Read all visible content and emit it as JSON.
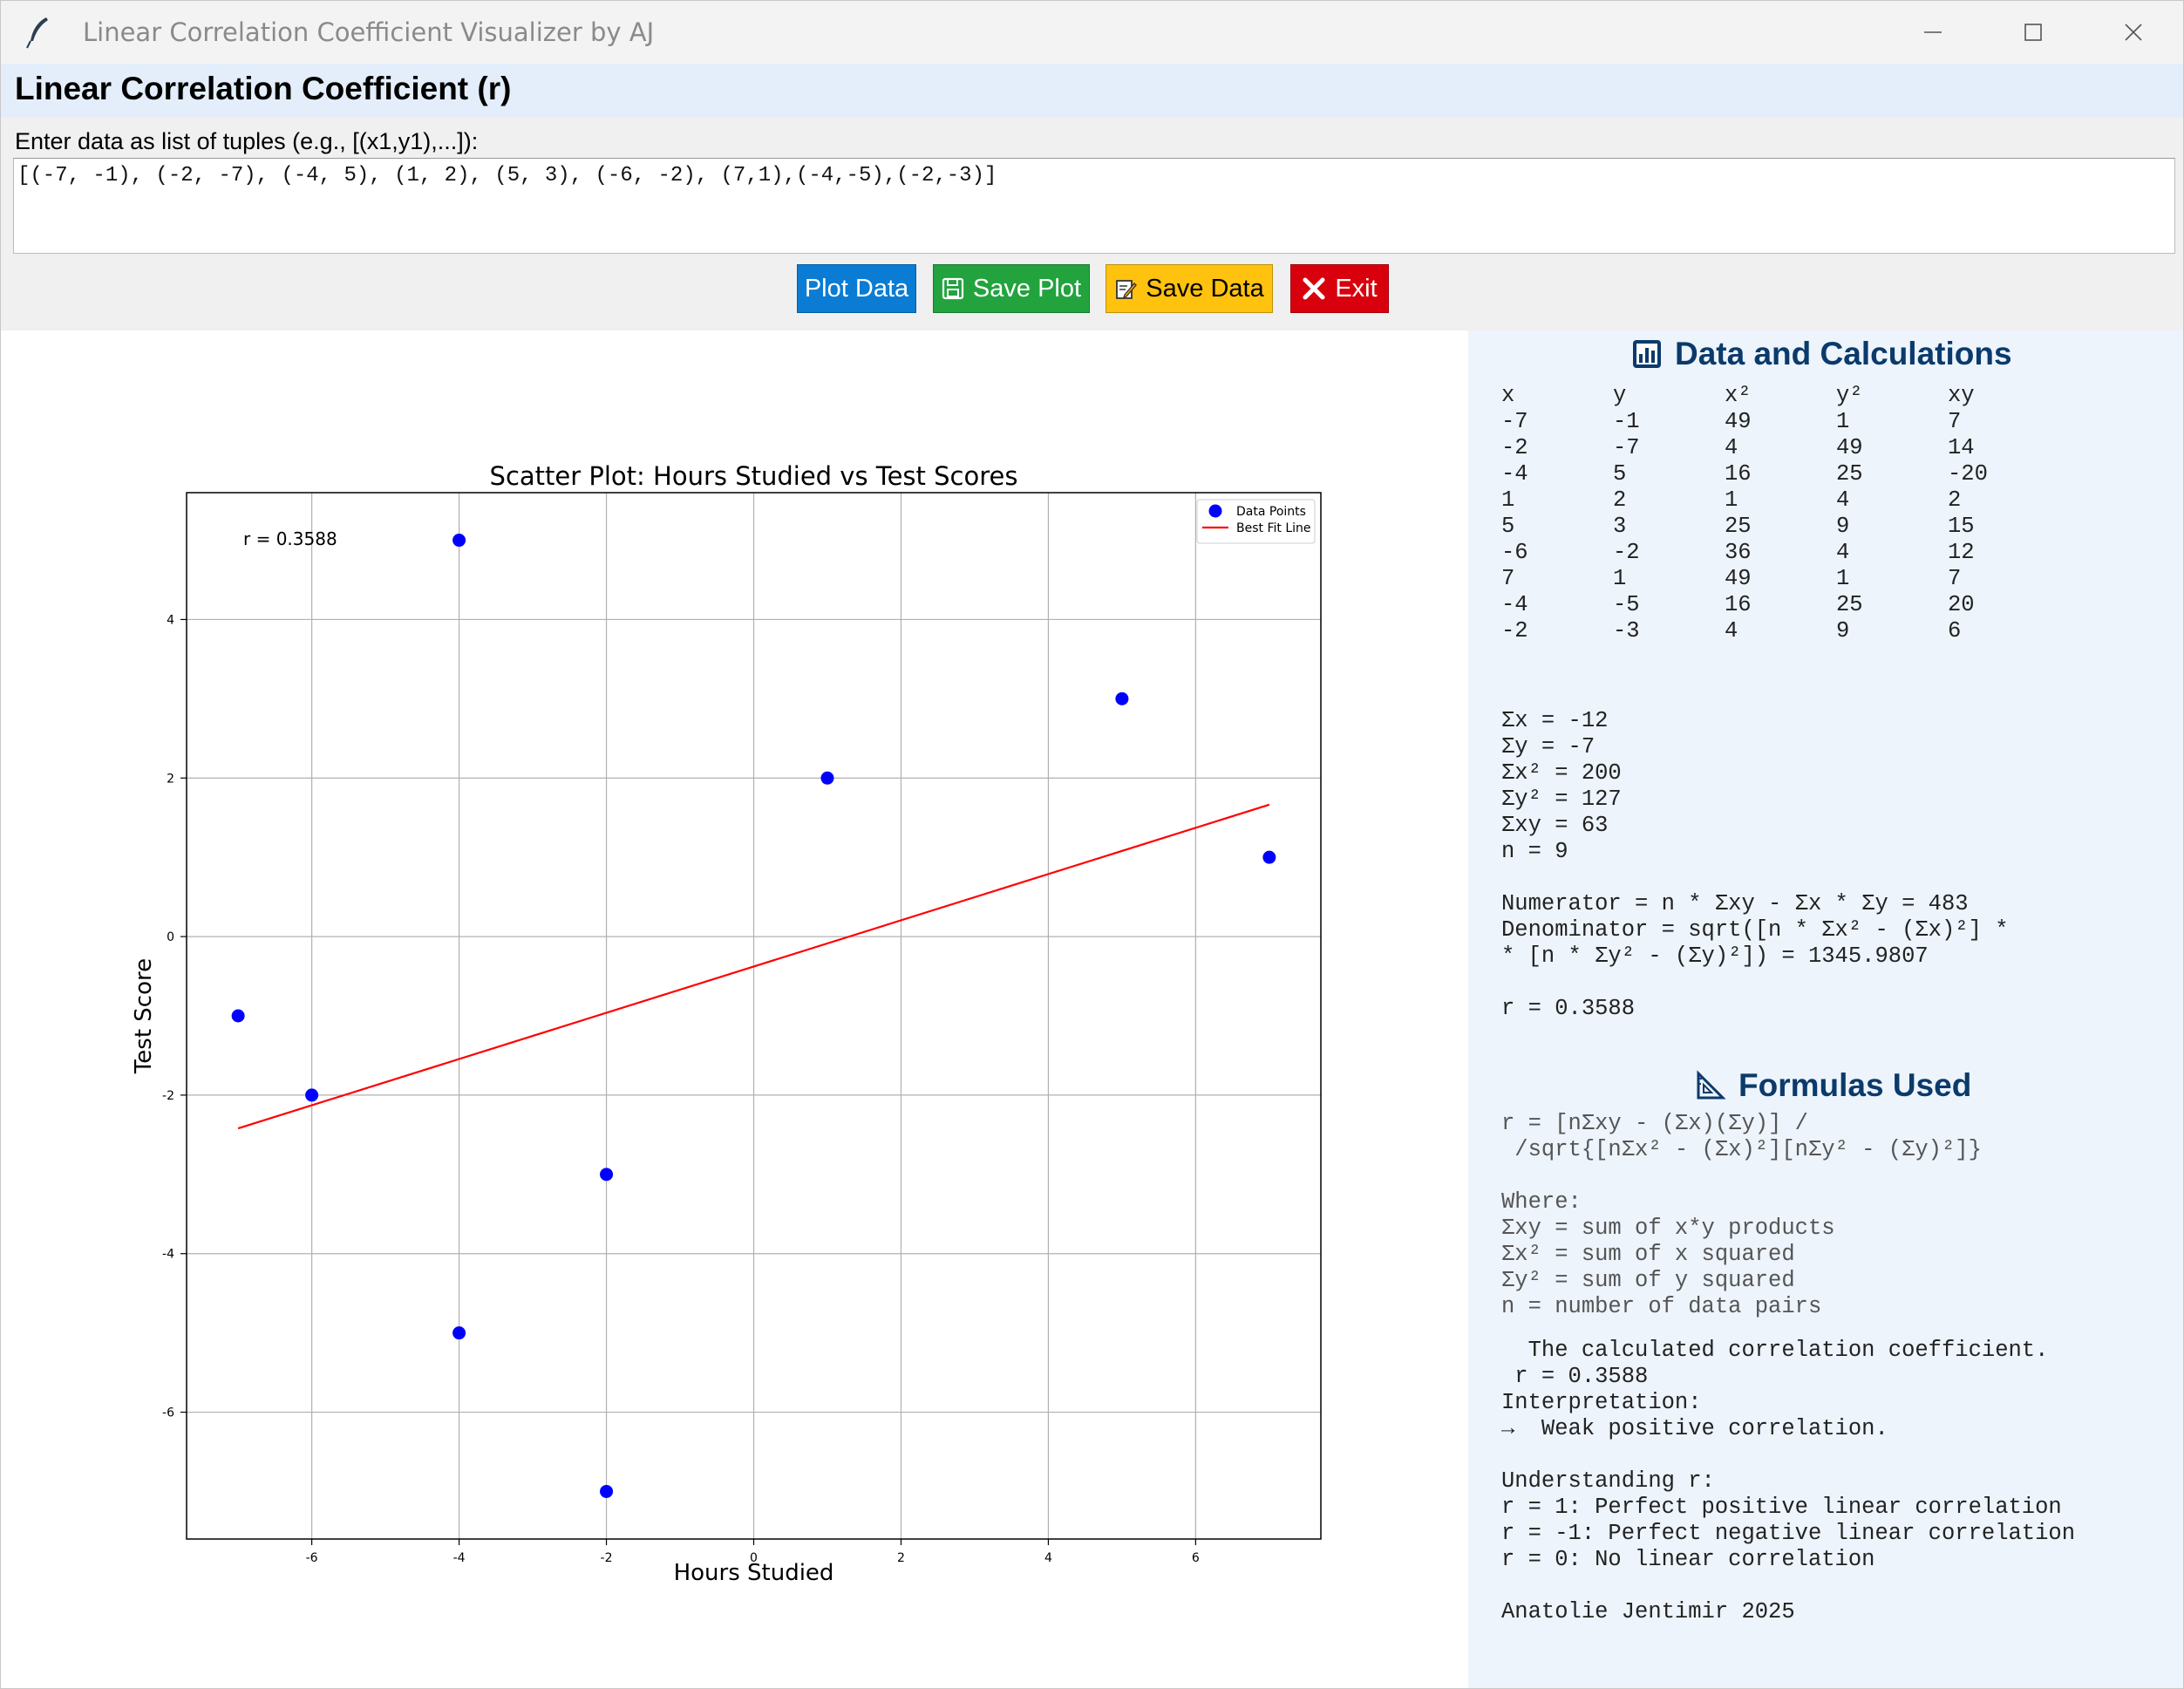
{
  "window": {
    "title": "Linear Correlation Coefficient Visualizer by AJ"
  },
  "header": {
    "title": "Linear Correlation Coefficient (r)"
  },
  "input": {
    "label": "Enter data as list of tuples (e.g., [(x1,y1),...]):",
    "value": "[(-7, -1), (-2, -7), (-4, 5), (1, 2), (5, 3), (-6, -2), (7,1),(-4,-5),(-2,-3)]"
  },
  "buttons": {
    "plot": "Plot Data",
    "save_plot": "Save Plot",
    "save_data": "Save Data",
    "exit": "Exit"
  },
  "colors": {
    "plot_button": "#0a7cd4",
    "save_plot_button": "#22a33e",
    "save_data_button": "#ffc20e",
    "exit_button": "#d9000d",
    "points": "#0000ff",
    "fit_line": "#ff0000",
    "panel_heading": "#0b3a6b"
  },
  "chart_data": {
    "type": "scatter",
    "title": "Scatter Plot: Hours Studied vs Test Scores",
    "xlabel": "Hours Studied",
    "ylabel": "Test Score",
    "xlim": [
      -7.7,
      7.7
    ],
    "ylim": [
      -7.6,
      5.6
    ],
    "xticks": [
      -6,
      -4,
      -2,
      0,
      2,
      4,
      6
    ],
    "yticks": [
      -6,
      -4,
      -2,
      0,
      2,
      4
    ],
    "grid": true,
    "legend_position": "top-right",
    "annotation": "r = 0.3588",
    "series": [
      {
        "name": "Data Points",
        "kind": "scatter",
        "color": "#0000ff",
        "points": [
          [
            -7,
            -1
          ],
          [
            -2,
            -7
          ],
          [
            -4,
            5
          ],
          [
            1,
            2
          ],
          [
            5,
            3
          ],
          [
            -6,
            -2
          ],
          [
            7,
            1
          ],
          [
            -4,
            -5
          ],
          [
            -2,
            -3
          ]
        ]
      },
      {
        "name": "Best Fit Line",
        "kind": "line",
        "color": "#ff0000",
        "points": [
          [
            -7,
            -2.4198
          ],
          [
            7,
            1.6637
          ]
        ]
      }
    ]
  },
  "calculations": {
    "heading": "Data and Calculations",
    "headers": [
      "x",
      "y",
      "x²",
      "y²",
      "xy"
    ],
    "rows": [
      [
        "-7",
        "-1",
        "49",
        "1",
        "7"
      ],
      [
        "-2",
        "-7",
        "4",
        "49",
        "14"
      ],
      [
        "-4",
        "5",
        "16",
        "25",
        "-20"
      ],
      [
        "1",
        "2",
        "1",
        "4",
        "2"
      ],
      [
        "5",
        "3",
        "25",
        "9",
        "15"
      ],
      [
        "-6",
        "-2",
        "36",
        "4",
        "12"
      ],
      [
        "7",
        "1",
        "49",
        "1",
        "7"
      ],
      [
        "-4",
        "-5",
        "16",
        "25",
        "20"
      ],
      [
        "-2",
        "-3",
        "4",
        "9",
        "6"
      ]
    ],
    "sums": "Σx = -12\nΣy = -7\nΣx² = 200\nΣy² = 127\nΣxy = 63\nn = 9\n\nNumerator = n * Σxy - Σx * Σy = 483\nDenominator = sqrt([n * Σx² - (Σx)²] *\n* [n * Σy² - (Σy)²]) = 1345.9807\n\nr = 0.3588"
  },
  "formulas": {
    "heading": "Formulas Used",
    "text": "r = [nΣxy - (Σx)(Σy)] /\n /sqrt{[nΣx² - (Σx)²][nΣy² - (Σy)²]}\n\nWhere:\nΣxy = sum of x*y products\nΣx² = sum of x squared\nΣy² = sum of y squared\nn = number of data pairs",
    "interpretation": "  The calculated correlation coefficient.\n r = 0.3588\nInterpretation:\n→  Weak positive correlation.\n\nUnderstanding r:\nr = 1: Perfect positive linear correlation\nr = -1: Perfect negative linear correlation\nr = 0: No linear correlation\n\nAnatolie Jentimir 2025"
  }
}
